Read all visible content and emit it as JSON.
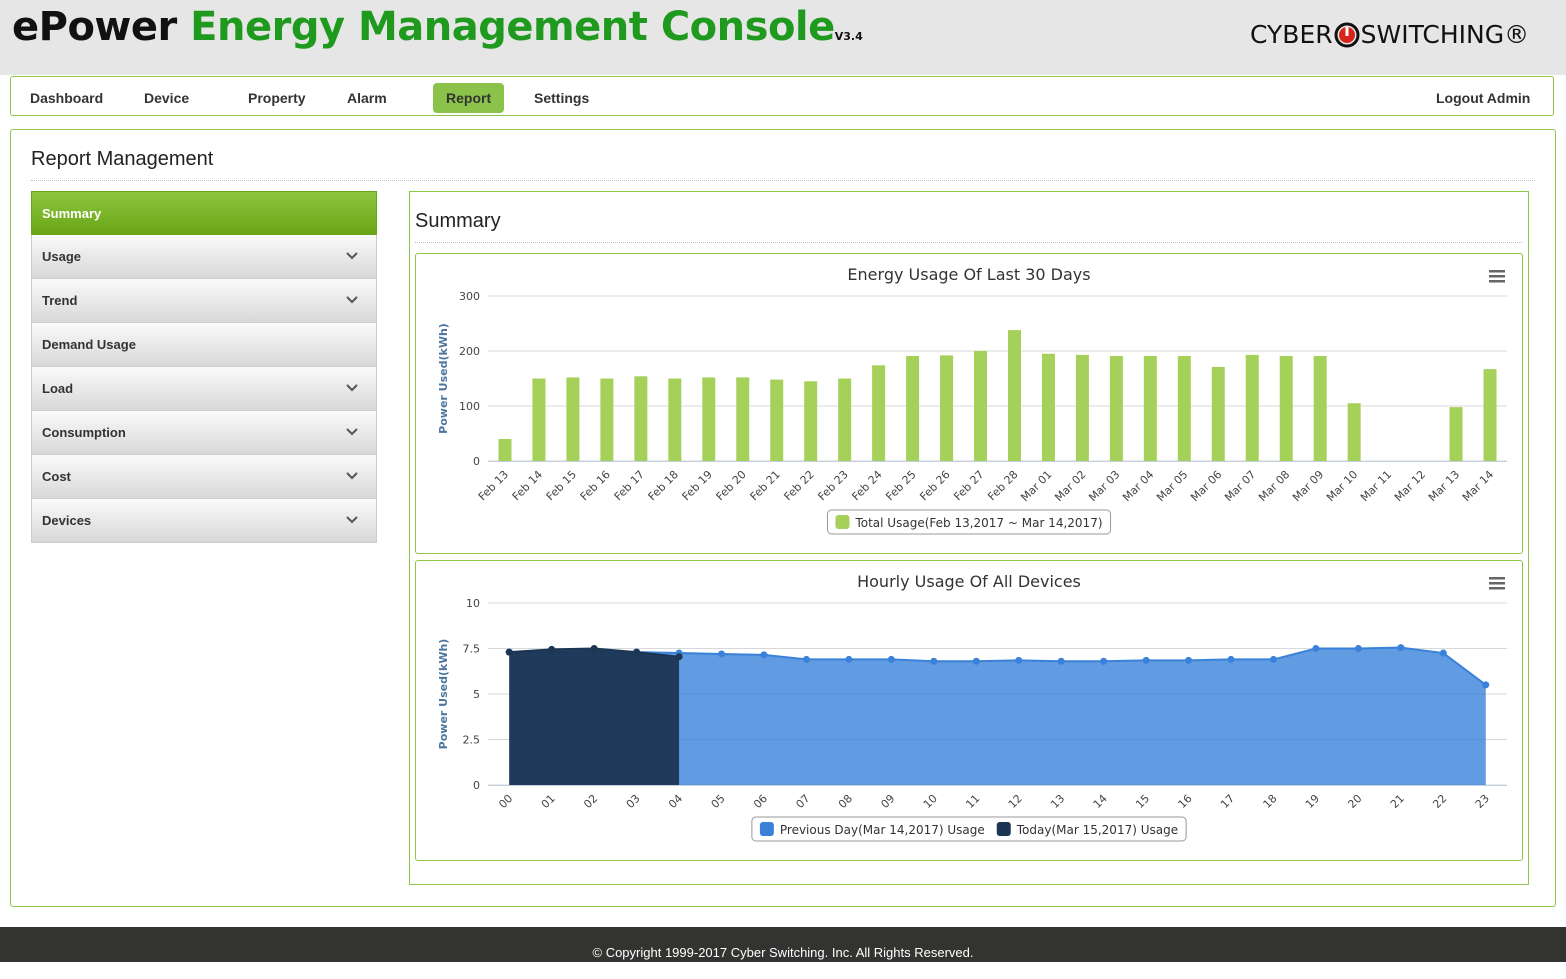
{
  "header": {
    "brand": "ePower",
    "title": "Energy Management Console",
    "version": "V3.4",
    "logo": [
      "CYBER",
      "SWITCHING®"
    ]
  },
  "nav": [
    "Dashboard",
    "Device",
    "Property",
    "Alarm",
    "Report",
    "Settings"
  ],
  "logout": "Logout Admin",
  "page_title": "Report Management",
  "sidebar": [
    "Summary",
    "Usage",
    "Trend",
    "Demand Usage",
    "Load",
    "Consumption",
    "Cost",
    "Devices"
  ],
  "section_title": "Summary",
  "chart_data": [
    {
      "type": "bar",
      "title": "Energy Usage Of Last 30 Days",
      "y_label": "Power Used(kWh)",
      "categories": [
        "Feb 13",
        "Feb 14",
        "Feb 15",
        "Feb 16",
        "Feb 17",
        "Feb 18",
        "Feb 19",
        "Feb 20",
        "Feb 21",
        "Feb 22",
        "Feb 23",
        "Feb 24",
        "Feb 25",
        "Feb 26",
        "Feb 27",
        "Feb 28",
        "Mar 01",
        "Mar 02",
        "Mar 03",
        "Mar 04",
        "Mar 05",
        "Mar 06",
        "Mar 07",
        "Mar 08",
        "Mar 09",
        "Mar 10",
        "Mar 11",
        "Mar 12",
        "Mar 13",
        "Mar 14"
      ],
      "series": [
        {
          "name": "Total Usage(Feb 13,2017 ~ Mar 14,2017)",
          "color": "#a5d05a",
          "values": [
            40,
            150,
            152,
            150,
            154,
            150,
            152,
            152,
            148,
            145,
            150,
            174,
            191,
            192,
            200,
            238,
            195,
            193,
            191,
            191,
            191,
            171,
            193,
            191,
            191,
            105,
            0,
            0,
            98,
            167
          ]
        }
      ],
      "ylim": [
        0,
        300
      ],
      "yticks": [
        0,
        100,
        200,
        300
      ],
      "grid": true
    },
    {
      "type": "area",
      "title": "Hourly Usage Of All Devices",
      "y_label": "Power Used(kWh)",
      "categories": [
        "00",
        "01",
        "02",
        "03",
        "04",
        "05",
        "06",
        "07",
        "08",
        "09",
        "10",
        "11",
        "12",
        "13",
        "14",
        "15",
        "16",
        "17",
        "18",
        "19",
        "20",
        "21",
        "22",
        "23"
      ],
      "series": [
        {
          "name": "Previous Day(Mar 14,2017) Usage",
          "color": "#3a82d9",
          "values": [
            7.3,
            7.3,
            7.35,
            7.3,
            7.25,
            7.2,
            7.15,
            6.9,
            6.9,
            6.9,
            6.8,
            6.8,
            6.85,
            6.8,
            6.8,
            6.85,
            6.85,
            6.9,
            6.9,
            7.5,
            7.5,
            7.55,
            7.25,
            5.5
          ]
        },
        {
          "name": "Today(Mar 15,2017) Usage",
          "color": "#1b3553",
          "values": [
            7.3,
            7.45,
            7.5,
            7.3,
            7.05,
            null,
            null,
            null,
            null,
            null,
            null,
            null,
            null,
            null,
            null,
            null,
            null,
            null,
            null,
            null,
            null,
            null,
            null,
            null
          ]
        }
      ],
      "ylim": [
        0,
        10
      ],
      "yticks": [
        0,
        2.5,
        5,
        7.5,
        10
      ],
      "grid": true
    }
  ],
  "footer": "© Copyright 1999-2017 Cyber Switching. Inc. All Rights Reserved."
}
